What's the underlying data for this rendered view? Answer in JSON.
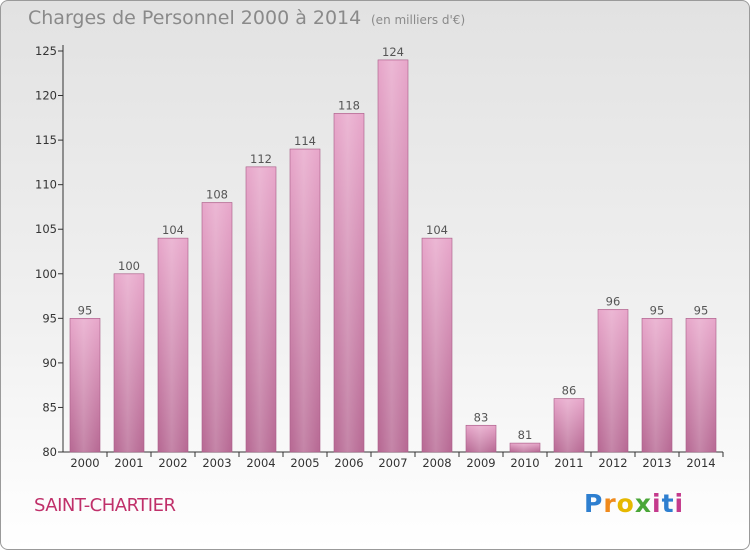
{
  "header": {
    "title": "Charges de Personnel 2000 à 2014",
    "subtitle": "(en milliers d'€)"
  },
  "commune": "SAINT-CHARTIER",
  "logo": {
    "text": "Proxiti"
  },
  "colors": {
    "bar": "#d98ab4",
    "title": "#8a8a8a",
    "commune": "#c0306a"
  },
  "chart_data": {
    "type": "bar",
    "categories": [
      "2000",
      "2001",
      "2002",
      "2003",
      "2004",
      "2005",
      "2006",
      "2007",
      "2008",
      "2009",
      "2010",
      "2011",
      "2012",
      "2013",
      "2014"
    ],
    "values": [
      95,
      100,
      104,
      108,
      112,
      114,
      118,
      124,
      104,
      83,
      81,
      86,
      96,
      95,
      95
    ],
    "ylim": [
      80,
      125
    ],
    "yticks": [
      80,
      85,
      90,
      95,
      100,
      105,
      110,
      115,
      120,
      125
    ],
    "grid": false,
    "data_labels": true
  }
}
